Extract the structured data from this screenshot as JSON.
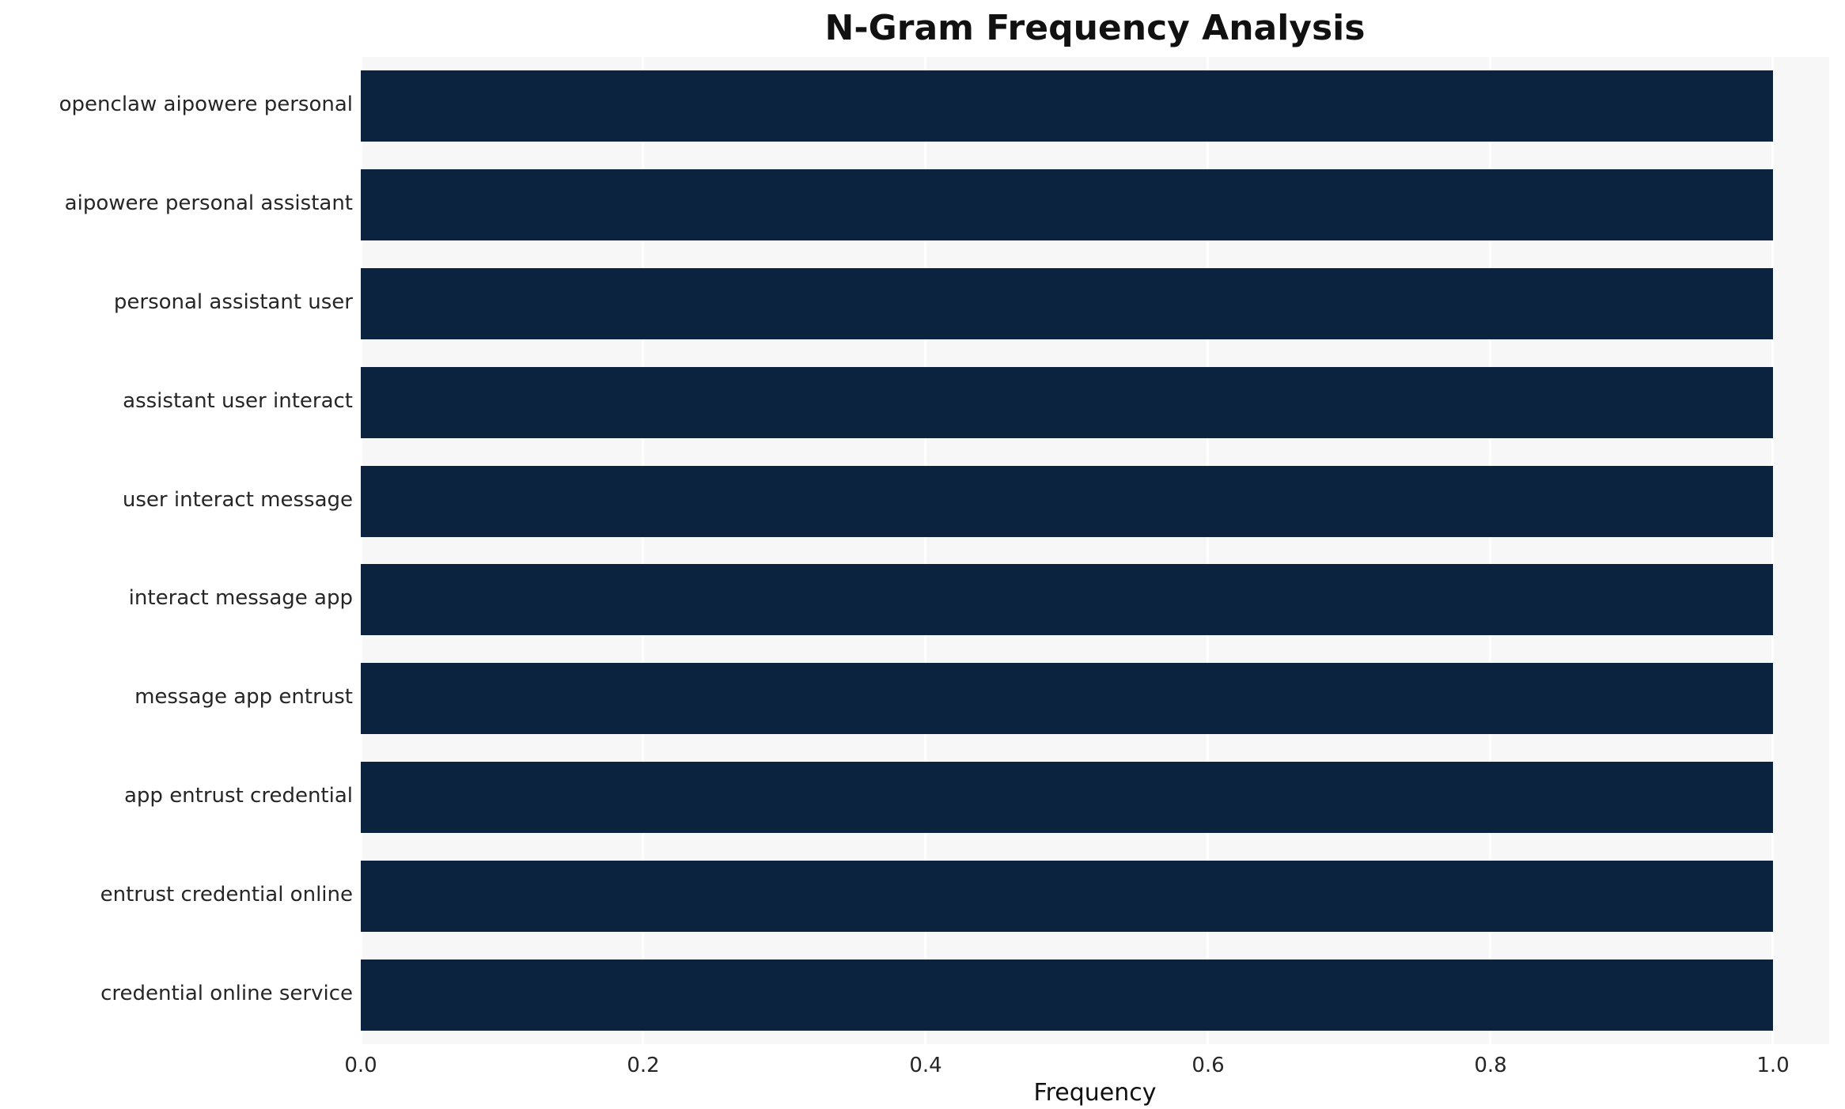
{
  "chart_data": {
    "type": "bar",
    "orientation": "horizontal",
    "title": "N-Gram Frequency Analysis",
    "xlabel": "Frequency",
    "ylabel": "",
    "categories": [
      "openclaw aipowere personal",
      "aipowere personal assistant",
      "personal assistant user",
      "assistant user interact",
      "user interact message",
      "interact message app",
      "message app entrust",
      "app entrust credential",
      "entrust credential online",
      "credential online service"
    ],
    "values": [
      1.0,
      1.0,
      1.0,
      1.0,
      1.0,
      1.0,
      1.0,
      1.0,
      1.0,
      1.0
    ],
    "x_ticks": [
      "0.0",
      "0.2",
      "0.4",
      "0.6",
      "0.8",
      "1.0"
    ],
    "x_tick_values": [
      0.0,
      0.2,
      0.4,
      0.6,
      0.8,
      1.0
    ],
    "xlim": [
      0,
      1.04
    ],
    "grid": "vertical-white-on-gray",
    "legend": "none",
    "bar_color": "#0c2340",
    "plot_background": "#f7f7f7"
  }
}
